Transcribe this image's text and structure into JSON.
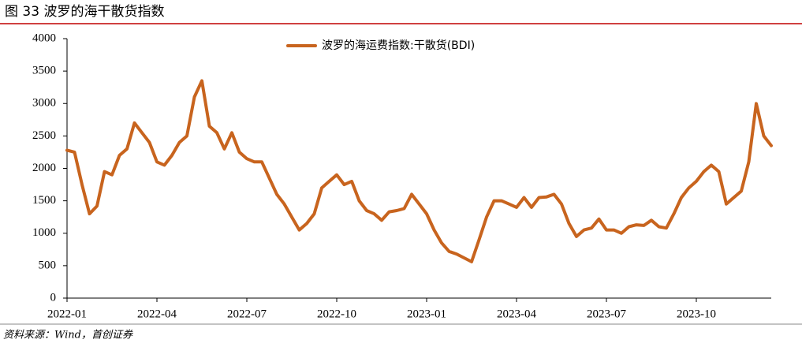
{
  "chart_data": {
    "type": "line",
    "title": "图 33 波罗的海干散货指数",
    "source": "资料来源：Wind，首创证券",
    "categories": [
      "2022-01",
      null,
      null,
      null,
      null,
      null,
      null,
      null,
      null,
      null,
      null,
      null,
      "2022-04",
      null,
      null,
      null,
      null,
      null,
      null,
      null,
      null,
      null,
      null,
      null,
      "2022-07",
      null,
      null,
      null,
      null,
      null,
      null,
      null,
      null,
      null,
      null,
      null,
      "2022-10",
      null,
      null,
      null,
      null,
      null,
      null,
      null,
      null,
      null,
      null,
      null,
      "2023-01",
      null,
      null,
      null,
      null,
      null,
      null,
      null,
      null,
      null,
      null,
      null,
      "2023-04",
      null,
      null,
      null,
      null,
      null,
      null,
      null,
      null,
      null,
      null,
      null,
      "2023-07",
      null,
      null,
      null,
      null,
      null,
      null,
      null,
      null,
      null,
      null,
      null,
      "2023-10",
      null,
      null,
      null,
      null,
      null,
      null,
      null,
      null,
      null,
      null
    ],
    "series": [
      {
        "name": "波罗的海运费指数:干散货(BDI)",
        "color": "#c8641e",
        "values": [
          2280,
          2250,
          1750,
          1300,
          1420,
          1950,
          1900,
          2200,
          2300,
          2700,
          2550,
          2400,
          2100,
          2050,
          2200,
          2400,
          2500,
          3100,
          3350,
          2650,
          2550,
          2300,
          2550,
          2250,
          2150,
          2100,
          2100,
          1850,
          1600,
          1450,
          1250,
          1050,
          1150,
          1300,
          1700,
          1800,
          1900,
          1750,
          1800,
          1500,
          1350,
          1300,
          1200,
          1330,
          1350,
          1380,
          1600,
          1450,
          1300,
          1050,
          850,
          720,
          680,
          620,
          560,
          900,
          1250,
          1500,
          1500,
          1450,
          1400,
          1550,
          1400,
          1550,
          1560,
          1600,
          1450,
          1150,
          950,
          1050,
          1080,
          1220,
          1050,
          1050,
          1000,
          1100,
          1130,
          1120,
          1200,
          1100,
          1080,
          1300,
          1550,
          1700,
          1800,
          1950,
          2050,
          1950,
          1450,
          1550,
          1650,
          2100,
          3000,
          2500,
          2350
        ]
      }
    ],
    "ylim": [
      0,
      4000
    ],
    "yticks": [
      0,
      500,
      1000,
      1500,
      2000,
      2500,
      3000,
      3500,
      4000
    ],
    "legend": "top"
  }
}
